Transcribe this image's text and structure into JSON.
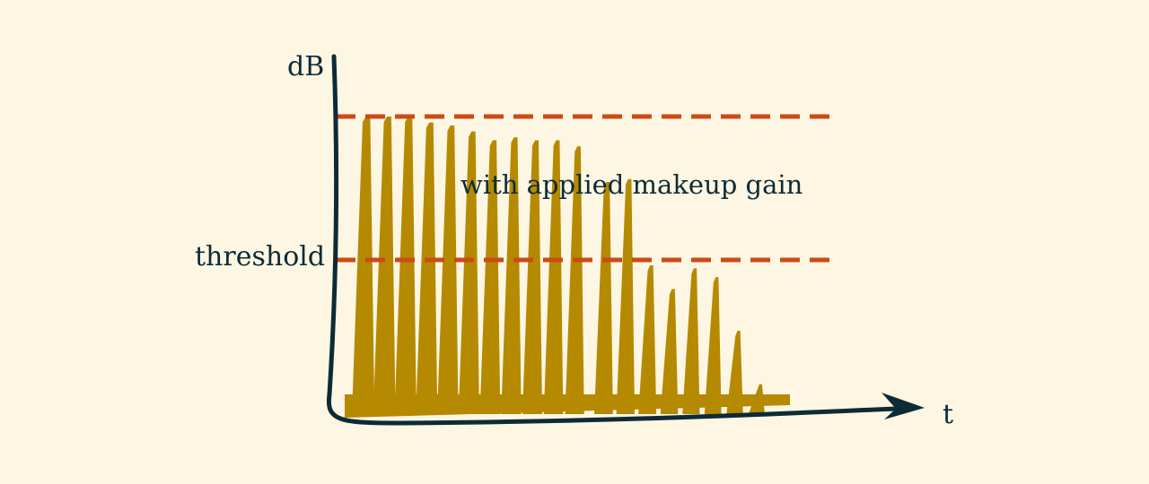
{
  "labels": {
    "y_axis": "dB",
    "x_axis": "t",
    "threshold": "threshold",
    "annotation": "with applied makeup gain"
  },
  "colors": {
    "background": "#fdf6e3",
    "signal": "#b58900",
    "threshold_line": "#cb4b16",
    "axis": "#0d2b36"
  },
  "chart_data": {
    "type": "area",
    "description_levels": {
      "threshold": 0.58,
      "makeup_peak": 1.0
    },
    "peaks": [
      {
        "level": 1.0
      },
      {
        "level": 1.0
      },
      {
        "level": 1.0
      },
      {
        "level": 0.98
      },
      {
        "level": 0.97
      },
      {
        "level": 0.95
      },
      {
        "level": 0.92
      },
      {
        "level": 0.93
      },
      {
        "level": 0.92
      },
      {
        "level": 0.92
      },
      {
        "level": 0.9
      },
      {
        "level": 0.78
      },
      {
        "level": 0.79
      },
      {
        "level": 0.5
      },
      {
        "level": 0.42
      },
      {
        "level": 0.49
      },
      {
        "level": 0.46
      },
      {
        "level": 0.28
      },
      {
        "level": 0.1
      }
    ]
  }
}
